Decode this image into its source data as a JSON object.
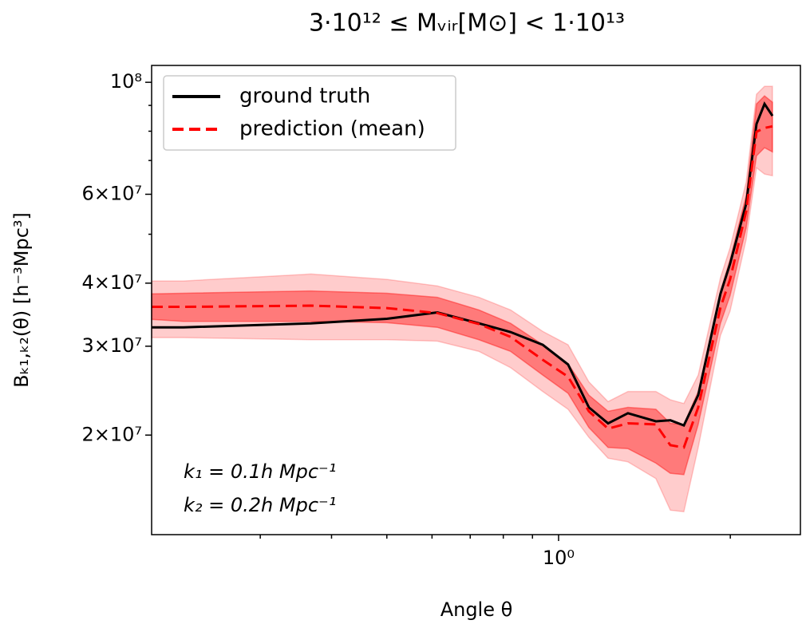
{
  "chart_data": {
    "type": "line",
    "title": "3·10¹² ≤ Mᵥᵢᵣ[M⊙] < 1·10¹³",
    "xlabel": "Angle θ",
    "ylabel": "Bₖ₁,ₖ₂(θ) [h⁻³Mpc³]",
    "annotations": [
      "k₁ = 0.1h Mpc⁻¹",
      "k₂ = 0.2h Mpc⁻¹"
    ],
    "xscale": "log",
    "yscale": "log",
    "legend": "upper-left",
    "xlim": [
      0.1935,
      2.654
    ],
    "ylim": [
      12700000,
      108000000
    ],
    "xticks": [
      {
        "value": 1,
        "label": "10⁰"
      }
    ],
    "xminor_ticks": [
      0.3,
      0.4,
      0.5,
      0.6,
      0.7,
      0.8,
      0.9,
      2
    ],
    "yticks": [
      {
        "value": 20000000,
        "label": "2×10⁷"
      },
      {
        "value": 30000000,
        "label": "3×10⁷"
      },
      {
        "value": 40000000,
        "label": "4×10⁷"
      },
      {
        "value": 60000000,
        "label": "6×10⁷"
      },
      {
        "value": 100000000,
        "label": "10⁸"
      }
    ],
    "yminor_ticks": [
      50000000,
      70000000,
      80000000,
      90000000
    ],
    "x": [
      0.1935,
      0.22,
      0.368,
      0.5,
      0.613,
      0.725,
      0.824,
      0.938,
      1.039,
      1.13,
      1.221,
      1.323,
      1.481,
      1.57,
      1.658,
      1.757,
      1.922,
      1.998,
      2.132,
      2.223,
      2.296,
      2.371
    ],
    "bands": [
      {
        "color": "#ff0000",
        "opacity": 0.2,
        "lower": [
          31200000.0,
          31200000.0,
          30900000.0,
          30900000.0,
          30700000.0,
          29300000.0,
          27200000.0,
          24400000.0,
          22500000.0,
          19800000.0,
          18000000.0,
          17700000.0,
          16400000.0,
          14200000.0,
          14100000.0,
          18900000.0,
          31500000.0,
          35200000.0,
          48800000.0,
          67700000.0,
          65800000.0,
          65300000.0
        ],
        "upper": [
          40400000.0,
          40400000.0,
          41700000.0,
          40700000.0,
          39500000.0,
          37500000.0,
          35400000.0,
          32100000.0,
          30200000.0,
          25500000.0,
          23300000.0,
          24400000.0,
          24400000.0,
          23500000.0,
          23100000.0,
          26300000.0,
          41000000.0,
          47000000.0,
          63400000.0,
          94700000.0,
          98200000.0,
          98200000.0
        ]
      },
      {
        "color": "#ff0000",
        "opacity": 0.4,
        "lower": [
          33900000.0,
          33600000.0,
          33600000.0,
          33400000.0,
          32700000.0,
          30900000.0,
          29300000.0,
          26300000.0,
          24200000.0,
          20700000.0,
          18900000.0,
          18800000.0,
          17600000.0,
          16800000.0,
          16700000.0,
          21000000.0,
          33300000.0,
          37800000.0,
          51500000.0,
          71500000.0,
          74200000.0,
          72800000.0
        ],
        "upper": [
          38100000.0,
          38200000.0,
          38600000.0,
          38200000.0,
          37500000.0,
          35400000.0,
          33300000.0,
          30200000.0,
          27700000.0,
          24000000.0,
          22300000.0,
          22700000.0,
          22500000.0,
          21100000.0,
          21000000.0,
          24400000.0,
          38500000.0,
          44500000.0,
          59600000.0,
          90600000.0,
          94000000.0,
          91300000.0
        ]
      }
    ],
    "series": [
      {
        "name": "ground truth",
        "color": "#000000",
        "dash": "solid",
        "values": [
          32700000.0,
          32700000.0,
          33300000.0,
          34000000.0,
          35000000.0,
          33300000.0,
          32000000.0,
          30200000.0,
          27600000.0,
          22700000.0,
          21100000.0,
          22100000.0,
          21300000.0,
          21400000.0,
          20900000.0,
          24000000.0,
          38100000.0,
          43700000.0,
          57400000.0,
          82700000.0,
          90600000.0,
          85800000.0
        ]
      },
      {
        "name": "prediction (mean)",
        "color": "#ff0000",
        "dash": "dashed",
        "values": [
          35900000.0,
          35900000.0,
          36100000.0,
          35700000.0,
          34900000.0,
          33200000.0,
          31300000.0,
          28200000.0,
          26100000.0,
          22300000.0,
          20600000.0,
          21100000.0,
          21000000.0,
          19100000.0,
          18900000.0,
          22700000.0,
          35800000.0,
          40700000.0,
          55500000.0,
          79800000.0,
          81200000.0,
          81800000.0
        ]
      }
    ]
  }
}
